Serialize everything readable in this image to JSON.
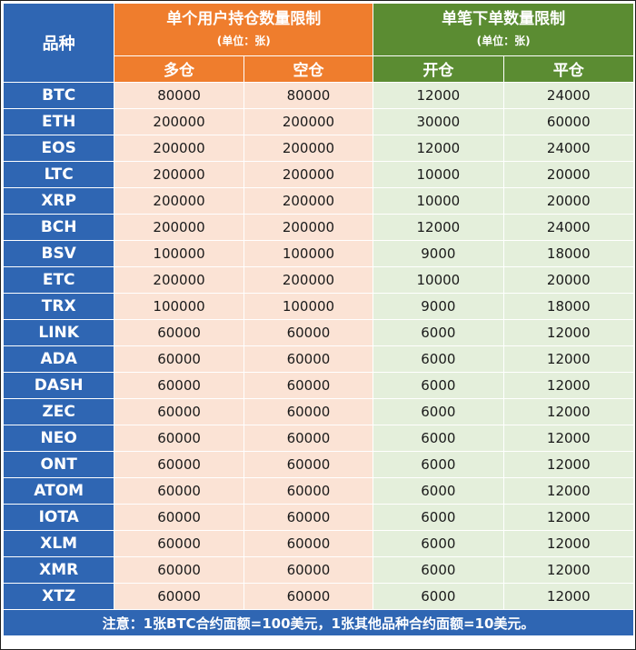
{
  "header": {
    "symbol": "品种",
    "position_limit": {
      "title": "单个用户持仓数量限制",
      "unit": "(单位：张)",
      "long": "多仓",
      "short": "空仓"
    },
    "order_limit": {
      "title": "单笔下单数量限制",
      "unit": "(单位：张)",
      "open": "开仓",
      "close": "平仓"
    }
  },
  "rows": [
    {
      "symbol": "BTC",
      "long": "80000",
      "short": "80000",
      "open": "12000",
      "close": "24000"
    },
    {
      "symbol": "ETH",
      "long": "200000",
      "short": "200000",
      "open": "30000",
      "close": "60000"
    },
    {
      "symbol": "EOS",
      "long": "200000",
      "short": "200000",
      "open": "12000",
      "close": "24000"
    },
    {
      "symbol": "LTC",
      "long": "200000",
      "short": "200000",
      "open": "10000",
      "close": "20000"
    },
    {
      "symbol": "XRP",
      "long": "200000",
      "short": "200000",
      "open": "10000",
      "close": "20000"
    },
    {
      "symbol": "BCH",
      "long": "200000",
      "short": "200000",
      "open": "12000",
      "close": "24000"
    },
    {
      "symbol": "BSV",
      "long": "100000",
      "short": "100000",
      "open": "9000",
      "close": "18000"
    },
    {
      "symbol": "ETC",
      "long": "200000",
      "short": "200000",
      "open": "10000",
      "close": "20000"
    },
    {
      "symbol": "TRX",
      "long": "100000",
      "short": "100000",
      "open": "9000",
      "close": "18000"
    },
    {
      "symbol": "LINK",
      "long": "60000",
      "short": "60000",
      "open": "6000",
      "close": "12000"
    },
    {
      "symbol": "ADA",
      "long": "60000",
      "short": "60000",
      "open": "6000",
      "close": "12000"
    },
    {
      "symbol": "DASH",
      "long": "60000",
      "short": "60000",
      "open": "6000",
      "close": "12000"
    },
    {
      "symbol": "ZEC",
      "long": "60000",
      "short": "60000",
      "open": "6000",
      "close": "12000"
    },
    {
      "symbol": "NEO",
      "long": "60000",
      "short": "60000",
      "open": "6000",
      "close": "12000"
    },
    {
      "symbol": "ONT",
      "long": "60000",
      "short": "60000",
      "open": "6000",
      "close": "12000"
    },
    {
      "symbol": "ATOM",
      "long": "60000",
      "short": "60000",
      "open": "6000",
      "close": "12000"
    },
    {
      "symbol": "IOTA",
      "long": "60000",
      "short": "60000",
      "open": "6000",
      "close": "12000"
    },
    {
      "symbol": "XLM",
      "long": "60000",
      "short": "60000",
      "open": "6000",
      "close": "12000"
    },
    {
      "symbol": "XMR",
      "long": "60000",
      "short": "60000",
      "open": "6000",
      "close": "12000"
    },
    {
      "symbol": "XTZ",
      "long": "60000",
      "short": "60000",
      "open": "6000",
      "close": "12000"
    }
  ],
  "footer": {
    "note": "注意：1张BTC合约面额=100美元，1张其他品种合约面额=10美元。"
  },
  "colors": {
    "symbol_header": "#2f66b3",
    "position_header": "#ef7d2d",
    "order_header": "#5b8c32",
    "position_cell": "#fbe3d5",
    "order_cell": "#e4efdb"
  }
}
